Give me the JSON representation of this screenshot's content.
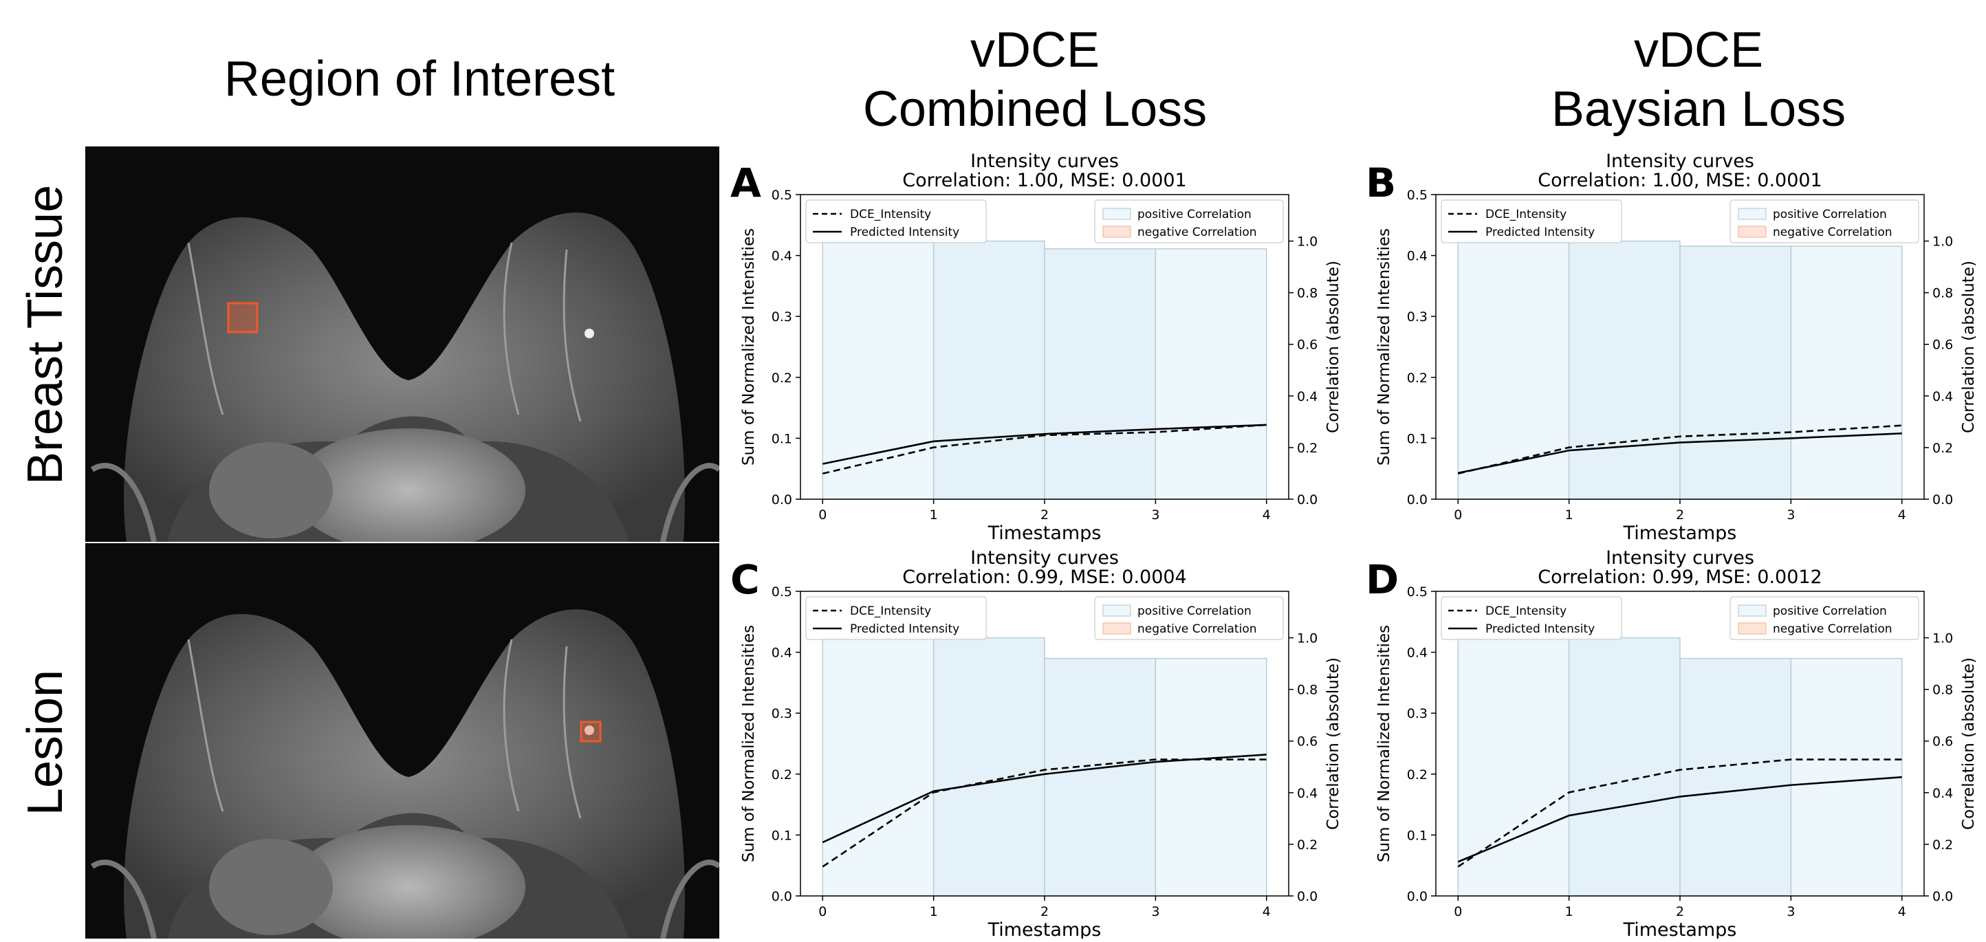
{
  "figure": {
    "col_titles": {
      "roi": "Region of Interest",
      "combined_line1": "vDCE",
      "combined_line2": "Combined Loss",
      "baysian_line1": "vDCE",
      "baysian_line2": "Baysian Loss"
    },
    "row_titles": {
      "tissue": "Breast Tissue",
      "lesion": "Lesion"
    },
    "roi_box_color": "#f05a28"
  },
  "chart_data": [
    {
      "id": "A",
      "type": "line",
      "letter": "A",
      "title": "Intensity curves",
      "subtitle": "Correlation: 1.00, MSE: 0.0001",
      "x": [
        0,
        1,
        2,
        3,
        4
      ],
      "series": [
        {
          "name": "DCE_Intensity",
          "style": "dashed",
          "values": [
            0.042,
            0.085,
            0.105,
            0.11,
            0.122
          ]
        },
        {
          "name": "Predicted Intensity",
          "style": "solid",
          "values": [
            0.058,
            0.095,
            0.107,
            0.115,
            0.122
          ]
        }
      ],
      "correlation_bars": [
        1.0,
        1.0,
        0.97,
        0.97
      ],
      "xlabel": "Timestamps",
      "ylabel": "Sum of Normalized Intensities",
      "y2label": "Correlation (absolute)",
      "ylim": [
        0,
        0.5
      ],
      "y2lim": [
        0,
        1.18
      ],
      "yticks": [
        "0.0",
        "0.1",
        "0.2",
        "0.3",
        "0.4",
        "0.5"
      ],
      "y2ticks": [
        "0.0",
        "0.2",
        "0.4",
        "0.6",
        "0.8",
        "1.0"
      ],
      "xticks": [
        "0",
        "1",
        "2",
        "3",
        "4"
      ],
      "legend_left": [
        "DCE_Intensity",
        "Predicted Intensity"
      ],
      "legend_right": [
        "positive Correlation",
        "negative Correlation"
      ]
    },
    {
      "id": "B",
      "type": "line",
      "letter": "B",
      "title": "Intensity curves",
      "subtitle": "Correlation: 1.00, MSE: 0.0001",
      "x": [
        0,
        1,
        2,
        3,
        4
      ],
      "series": [
        {
          "name": "DCE_Intensity",
          "style": "dashed",
          "values": [
            0.042,
            0.085,
            0.103,
            0.11,
            0.121
          ]
        },
        {
          "name": "Predicted Intensity",
          "style": "solid",
          "values": [
            0.043,
            0.08,
            0.093,
            0.1,
            0.108
          ]
        }
      ],
      "correlation_bars": [
        1.0,
        1.0,
        0.98,
        0.98
      ],
      "xlabel": "Timestamps",
      "ylabel": "Sum of Normalized Intensities",
      "y2label": "Correlation (absolute)",
      "ylim": [
        0,
        0.5
      ],
      "y2lim": [
        0,
        1.18
      ],
      "yticks": [
        "0.0",
        "0.1",
        "0.2",
        "0.3",
        "0.4",
        "0.5"
      ],
      "y2ticks": [
        "0.0",
        "0.2",
        "0.4",
        "0.6",
        "0.8",
        "1.0"
      ],
      "xticks": [
        "0",
        "1",
        "2",
        "3",
        "4"
      ],
      "legend_left": [
        "DCE_Intensity",
        "Predicted Intensity"
      ],
      "legend_right": [
        "positive Correlation",
        "negative Correlation"
      ]
    },
    {
      "id": "C",
      "type": "line",
      "letter": "C",
      "title": "Intensity curves",
      "subtitle": "Correlation: 0.99, MSE: 0.0004",
      "x": [
        0,
        1,
        2,
        3,
        4
      ],
      "series": [
        {
          "name": "DCE_Intensity",
          "style": "dashed",
          "values": [
            0.048,
            0.17,
            0.207,
            0.224,
            0.224
          ]
        },
        {
          "name": "Predicted Intensity",
          "style": "solid",
          "values": [
            0.088,
            0.172,
            0.2,
            0.22,
            0.232
          ]
        }
      ],
      "correlation_bars": [
        1.0,
        1.0,
        0.92,
        0.92
      ],
      "xlabel": "Timestamps",
      "ylabel": "Sum of Normalized Intensities",
      "y2label": "Correlation (absolute)",
      "ylim": [
        0,
        0.5
      ],
      "y2lim": [
        0,
        1.18
      ],
      "yticks": [
        "0.0",
        "0.1",
        "0.2",
        "0.3",
        "0.4",
        "0.5"
      ],
      "y2ticks": [
        "0.0",
        "0.2",
        "0.4",
        "0.6",
        "0.8",
        "1.0"
      ],
      "xticks": [
        "0",
        "1",
        "2",
        "3",
        "4"
      ],
      "legend_left": [
        "DCE_Intensity",
        "Predicted Intensity"
      ],
      "legend_right": [
        "positive Correlation",
        "negative Correlation"
      ]
    },
    {
      "id": "D",
      "type": "line",
      "letter": "D",
      "title": "Intensity curves",
      "subtitle": "Correlation: 0.99, MSE: 0.0012",
      "x": [
        0,
        1,
        2,
        3,
        4
      ],
      "series": [
        {
          "name": "DCE_Intensity",
          "style": "dashed",
          "values": [
            0.048,
            0.17,
            0.207,
            0.224,
            0.224
          ]
        },
        {
          "name": "Predicted Intensity",
          "style": "solid",
          "values": [
            0.056,
            0.132,
            0.163,
            0.182,
            0.195
          ]
        }
      ],
      "correlation_bars": [
        1.0,
        1.0,
        0.92,
        0.92
      ],
      "xlabel": "Timestamps",
      "ylabel": "Sum of Normalized Intensities",
      "y2label": "Correlation (absolute)",
      "ylim": [
        0,
        0.5
      ],
      "y2lim": [
        0,
        1.18
      ],
      "yticks": [
        "0.0",
        "0.1",
        "0.2",
        "0.3",
        "0.4",
        "0.5"
      ],
      "y2ticks": [
        "0.0",
        "0.2",
        "0.4",
        "0.6",
        "0.8",
        "1.0"
      ],
      "xticks": [
        "0",
        "1",
        "2",
        "3",
        "4"
      ],
      "legend_left": [
        "DCE_Intensity",
        "Predicted Intensity"
      ],
      "legend_right": [
        "positive Correlation",
        "negative Correlation"
      ]
    }
  ]
}
